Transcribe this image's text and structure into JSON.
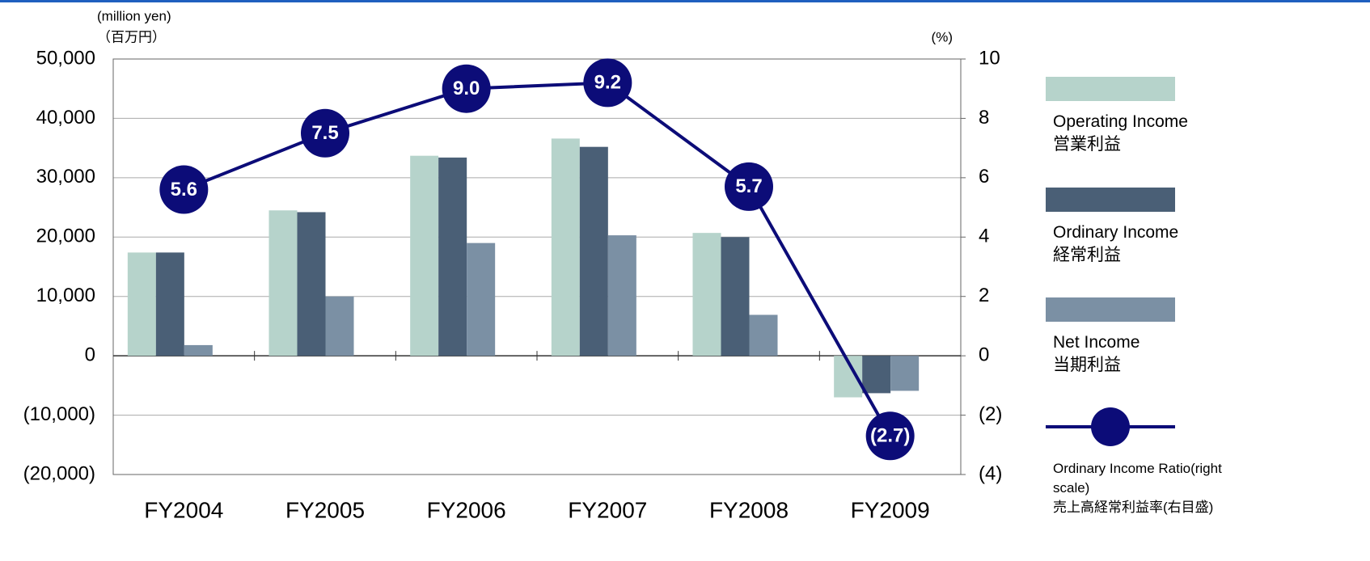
{
  "chart_data": {
    "type": "bar",
    "axis_labels": {
      "y": "(million yen)",
      "y_jp": "（百万円）",
      "y2": "(%)"
    },
    "categories": [
      "FY2004",
      "FY2005",
      "FY2006",
      "FY2007",
      "FY2008",
      "FY2009"
    ],
    "series": [
      {
        "name": "Operating Income\n営業利益",
        "color": "#b6d3cb",
        "values": [
          17400,
          24500,
          33700,
          36600,
          20700,
          -7000
        ]
      },
      {
        "name": "Ordinary Income\n経常利益",
        "color": "#4a5f76",
        "values": [
          17400,
          24200,
          33400,
          35200,
          20000,
          -6300
        ]
      },
      {
        "name": "Net Income\n当期利益",
        "color": "#7b90a4",
        "values": [
          1800,
          10000,
          19000,
          20300,
          6900,
          -5900
        ]
      },
      {
        "name": "Ordinary Income Ratio(right scale)\n売上高経常利益率(右目盛)",
        "type": "line",
        "axis": "y2",
        "color": "#0c0c78",
        "values": [
          5.6,
          7.5,
          9.0,
          9.2,
          5.7,
          -2.7
        ],
        "value_labels": [
          "5.6",
          "7.5",
          "9.0",
          "9.2",
          "5.7",
          "(2.7)"
        ]
      }
    ],
    "ylim": [
      -20000,
      50000
    ],
    "yticks": [
      {
        "value": -20000,
        "label": "(20,000)"
      },
      {
        "value": -10000,
        "label": "(10,000)"
      },
      0,
      {
        "value": 10000,
        "label": "10,000"
      },
      {
        "value": 20000,
        "label": "20,000"
      },
      {
        "value": 30000,
        "label": "30,000"
      },
      {
        "value": 40000,
        "label": "40,000"
      },
      {
        "value": 50000,
        "label": "50,000"
      }
    ],
    "y2lim": [
      -4,
      10
    ],
    "y2ticks": [
      {
        "value": -4,
        "label": "(4)"
      },
      {
        "value": -2,
        "label": "(2)"
      },
      0,
      2,
      4,
      6,
      8,
      10
    ],
    "grid": true,
    "legend": "right"
  }
}
